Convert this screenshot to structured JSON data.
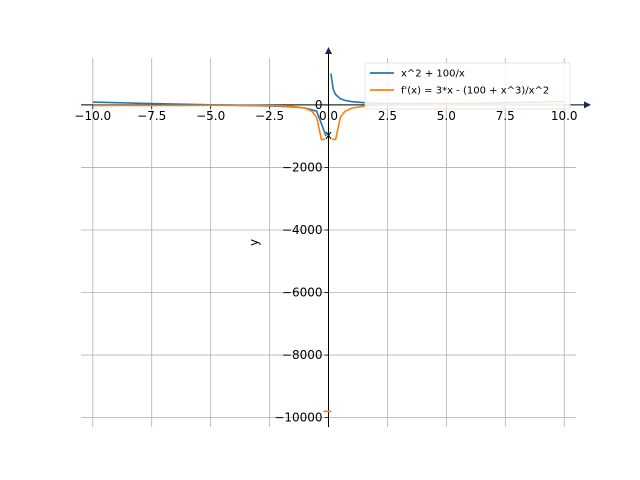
{
  "chart_data": {
    "type": "line",
    "title": "",
    "xlabel": "x",
    "ylabel": "y",
    "xlim": [
      -10.5,
      10.5
    ],
    "ylim": [
      -10300,
      1500
    ],
    "grid": true,
    "legend_position": "top-right",
    "x_ticks": [
      {
        "value": -10.0,
        "label": "−10.0"
      },
      {
        "value": -7.5,
        "label": "−7.5"
      },
      {
        "value": -5.0,
        "label": "−5.0"
      },
      {
        "value": -2.5,
        "label": "−2.5"
      },
      {
        "value": 0.0,
        "label": "0.0"
      },
      {
        "value": 2.5,
        "label": "2.5"
      },
      {
        "value": 5.0,
        "label": "5.0"
      },
      {
        "value": 7.5,
        "label": "7.5"
      },
      {
        "value": 10.0,
        "label": "10.0"
      }
    ],
    "y_ticks": [
      {
        "value": 0,
        "label": "0"
      },
      {
        "value": -2000,
        "label": "−2000"
      },
      {
        "value": -4000,
        "label": "−4000"
      },
      {
        "value": -6000,
        "label": "−6000"
      },
      {
        "value": -8000,
        "label": "−8000"
      },
      {
        "value": -10000,
        "label": "−10000"
      }
    ],
    "series": [
      {
        "name": "x^2 + 100/x",
        "color": "#1f77b4",
        "x": [
          -10,
          -9,
          -8,
          -7,
          -6,
          -5,
          -4,
          -3,
          -2,
          -1.5,
          -1,
          -0.5,
          -0.1,
          0.1,
          0.2,
          0.3,
          0.5,
          0.7,
          1,
          1.5,
          2,
          3,
          4,
          5,
          6,
          7,
          8,
          9,
          10
        ],
        "y": [
          90,
          69.9,
          51.5,
          34.7,
          19.3,
          5,
          -9,
          -24.3,
          -46,
          -64.4,
          -99,
          -199.8,
          -1000,
          1000,
          500,
          333,
          200,
          143,
          101,
          69,
          54,
          42,
          41,
          45,
          52.7,
          63.3,
          76.5,
          92.1,
          110
        ]
      },
      {
        "name": "f'(x) = 3*x - (100 + x^3)/x^2",
        "color": "#ff7f0e",
        "x": [
          -10,
          -9,
          -8,
          -7,
          -6,
          -5,
          -4,
          -3,
          -2,
          -1.5,
          -1,
          -0.7,
          -0.5,
          -0.3,
          -0.15,
          0.15,
          0.3,
          0.5,
          0.7,
          1,
          1.5,
          2,
          3,
          4,
          5,
          6,
          7,
          8,
          9,
          10
        ],
        "y": [
          -21,
          -19.2,
          -17.6,
          -16,
          -14.8,
          -14,
          -14.3,
          -17.1,
          -29,
          -47.4,
          -102,
          -205,
          -401,
          -1111,
          -1100,
          -1100,
          -1111,
          -399,
          -203,
          -98,
          -41.4,
          -21,
          -5.1,
          1.8,
          6,
          9.2,
          12,
          14.4,
          16.8,
          19
        ]
      },
      {
        "name": "",
        "color": "#ff7f0e",
        "x": [
          -0.05
        ],
        "y": [
          -9800
        ]
      }
    ]
  }
}
